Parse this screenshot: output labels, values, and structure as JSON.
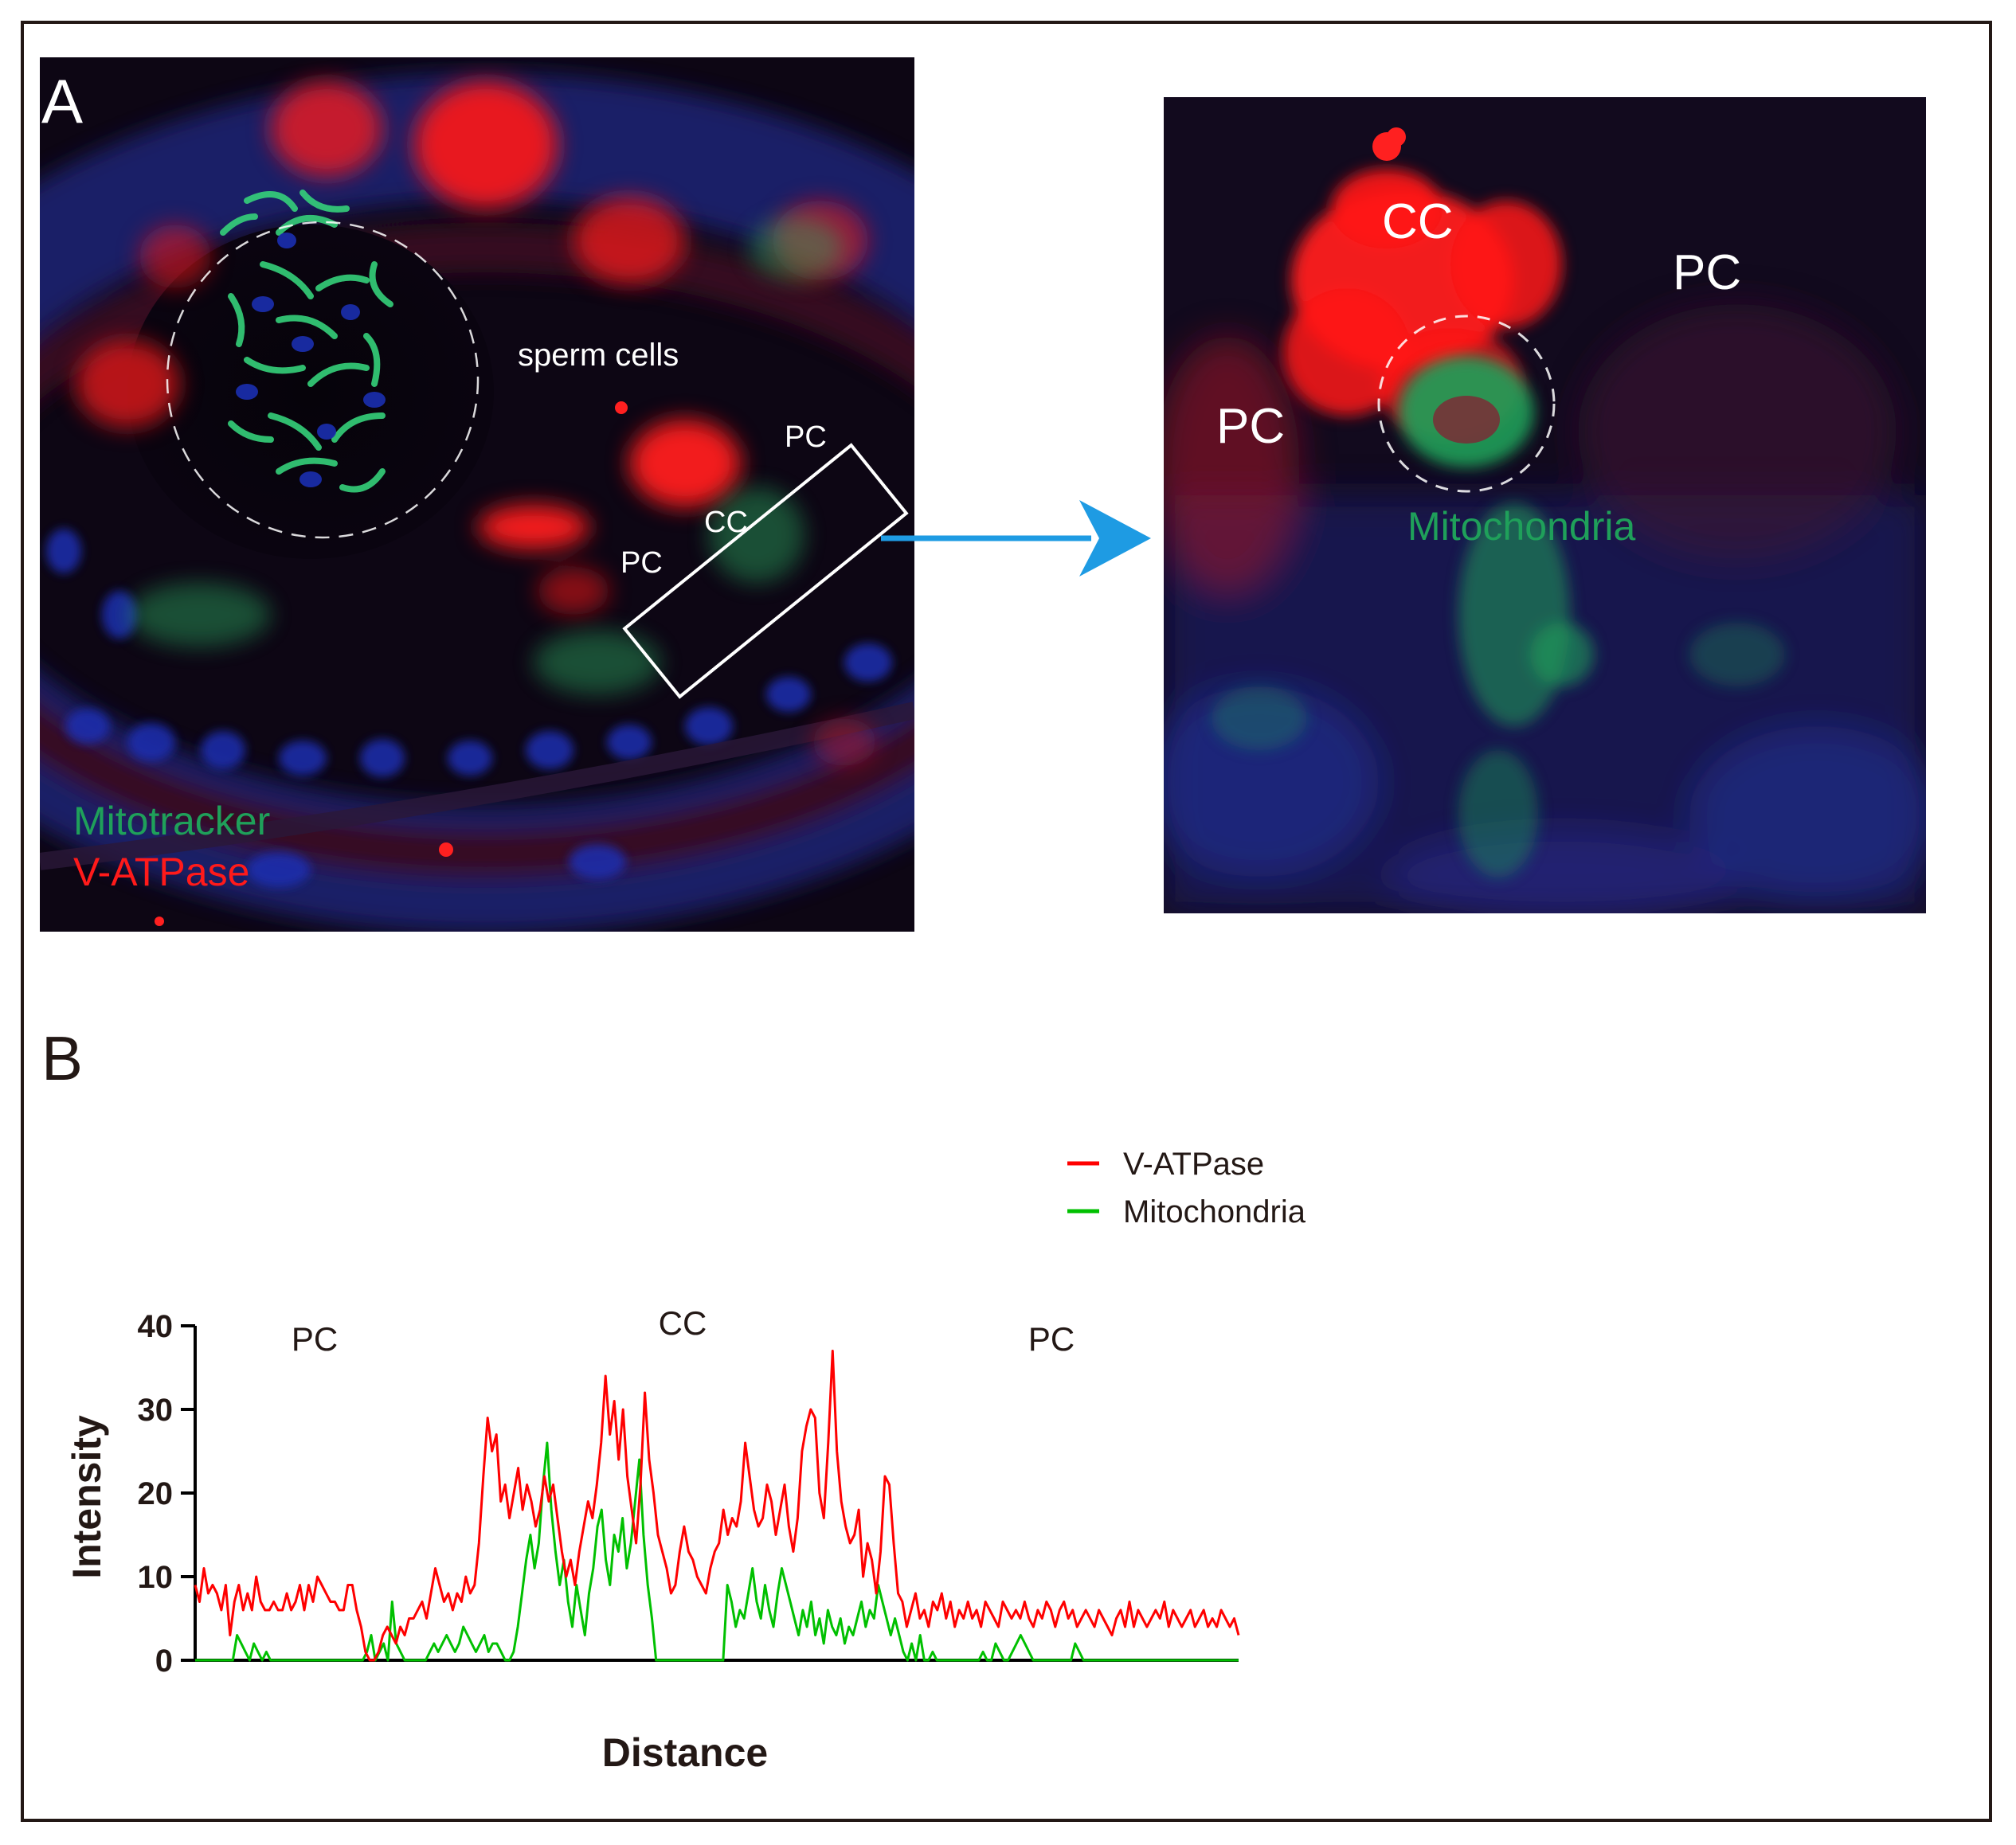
{
  "panel_a": {
    "letter": "A",
    "sperm_label": "sperm cells",
    "box_labels": {
      "pc_top": "PC",
      "cc": "CC",
      "pc_bottom": "PC"
    },
    "legend": {
      "green": "Mitotracker",
      "red": "V-ATPase"
    }
  },
  "zoom": {
    "cc": "CC",
    "pc_right": "PC",
    "pc_left": "PC",
    "mito": "Mitochondria"
  },
  "panel_b": {
    "letter": "B"
  },
  "colors": {
    "red_channel": "#ff1a1a",
    "green_channel": "#1fa05a",
    "blue_channel": "#1c2a9a",
    "arrow": "#1e9be3",
    "line_red": "#ff0000",
    "line_green": "#00c000",
    "text": "#231815"
  },
  "chart_data": {
    "type": "line",
    "xlabel": "Distance",
    "ylabel": "Intensity",
    "ylim": [
      0,
      40
    ],
    "yticks": [
      "0",
      "10",
      "20",
      "30",
      "40"
    ],
    "region_labels": [
      "PC",
      "CC",
      "PC"
    ],
    "legend": [
      "V-ATPase",
      "Mitochondria"
    ],
    "series": [
      {
        "name": "V-ATPase",
        "color": "#ff0000",
        "values": [
          9,
          7,
          11,
          8,
          9,
          8,
          6,
          9,
          3,
          7,
          9,
          6,
          8,
          6,
          10,
          7,
          6,
          6,
          7,
          6,
          6,
          8,
          6,
          7,
          9,
          6,
          9,
          7,
          10,
          9,
          8,
          7,
          7,
          6,
          6,
          9,
          9,
          6,
          4,
          1,
          0,
          0,
          1,
          3,
          4,
          3,
          2,
          4,
          3,
          5,
          5,
          6,
          7,
          5,
          8,
          11,
          9,
          7,
          8,
          6,
          8,
          7,
          10,
          8,
          9,
          14,
          22,
          29,
          25,
          27,
          19,
          21,
          17,
          20,
          23,
          18,
          21,
          19,
          16,
          18,
          22,
          19,
          21,
          17,
          13,
          10,
          12,
          9,
          13,
          16,
          19,
          17,
          21,
          26,
          34,
          27,
          31,
          24,
          30,
          22,
          18,
          14,
          21,
          32,
          24,
          20,
          15,
          13,
          11,
          8,
          9,
          13,
          16,
          13,
          12,
          10,
          9,
          8,
          11,
          13,
          14,
          18,
          15,
          17,
          16,
          19,
          26,
          22,
          18,
          16,
          17,
          21,
          19,
          15,
          18,
          21,
          16,
          13,
          17,
          25,
          28,
          30,
          29,
          20,
          17,
          26,
          37,
          25,
          19,
          16,
          14,
          15,
          18,
          10,
          14,
          12,
          8,
          13,
          22,
          21,
          14,
          8,
          7,
          4,
          6,
          8,
          5,
          6,
          4,
          7,
          6,
          8,
          5,
          7,
          4,
          6,
          5,
          7,
          5,
          6,
          4,
          7,
          6,
          5,
          4,
          7,
          6,
          5,
          6,
          5,
          7,
          5,
          4,
          6,
          5,
          7,
          6,
          4,
          6,
          7,
          5,
          6,
          4,
          5,
          6,
          5,
          4,
          6,
          5,
          4,
          3,
          5,
          6,
          4,
          7,
          4,
          6,
          5,
          4,
          5,
          6,
          5,
          7,
          4,
          6,
          5,
          4,
          5,
          6,
          4,
          5,
          6,
          4,
          5,
          4,
          6,
          5,
          4,
          5,
          3
        ]
      },
      {
        "name": "Mitochondria",
        "color": "#00c000",
        "values": [
          0,
          0,
          0,
          0,
          0,
          0,
          0,
          0,
          0,
          0,
          3,
          2,
          1,
          0,
          2,
          1,
          0,
          1,
          0,
          0,
          0,
          0,
          0,
          0,
          0,
          0,
          0,
          0,
          0,
          0,
          0,
          0,
          0,
          0,
          0,
          0,
          0,
          0,
          0,
          0,
          0,
          1,
          3,
          0,
          1,
          2,
          0,
          7,
          2,
          1,
          0,
          0,
          0,
          0,
          0,
          0,
          1,
          2,
          1,
          2,
          3,
          2,
          1,
          2,
          4,
          3,
          2,
          1,
          2,
          3,
          1,
          2,
          2,
          1,
          0,
          0,
          1,
          4,
          8,
          12,
          15,
          11,
          14,
          21,
          26,
          18,
          13,
          9,
          12,
          7,
          4,
          9,
          6,
          3,
          8,
          11,
          16,
          18,
          12,
          9,
          15,
          13,
          17,
          11,
          14,
          19,
          24,
          15,
          9,
          5,
          0,
          0,
          0,
          0,
          0,
          0,
          0,
          0,
          0,
          0,
          0,
          0,
          0,
          0,
          0,
          0,
          0,
          9,
          7,
          4,
          6,
          5,
          8,
          11,
          7,
          5,
          9,
          6,
          4,
          8,
          11,
          9,
          7,
          5,
          3,
          6,
          4,
          7,
          3,
          5,
          2,
          6,
          4,
          3,
          5,
          2,
          4,
          3,
          5,
          7,
          4,
          6,
          5,
          9,
          7,
          5,
          3,
          5,
          3,
          1,
          0,
          2,
          0,
          3,
          0,
          0,
          1,
          0,
          0,
          0,
          0,
          0,
          0,
          0,
          0,
          0,
          0,
          0,
          1,
          0,
          0,
          2,
          1,
          0,
          0,
          1,
          2,
          3,
          2,
          1,
          0,
          0,
          0,
          0,
          0,
          0,
          0,
          0,
          0,
          0,
          2,
          1,
          0,
          0,
          0,
          0,
          0,
          0,
          0,
          0,
          0,
          0,
          0,
          0,
          0,
          0,
          0,
          0,
          0,
          0,
          0,
          0,
          0,
          0,
          0,
          0,
          0,
          0,
          0,
          0,
          0,
          0,
          0,
          0,
          0,
          0,
          0,
          0,
          0,
          0
        ]
      }
    ]
  }
}
